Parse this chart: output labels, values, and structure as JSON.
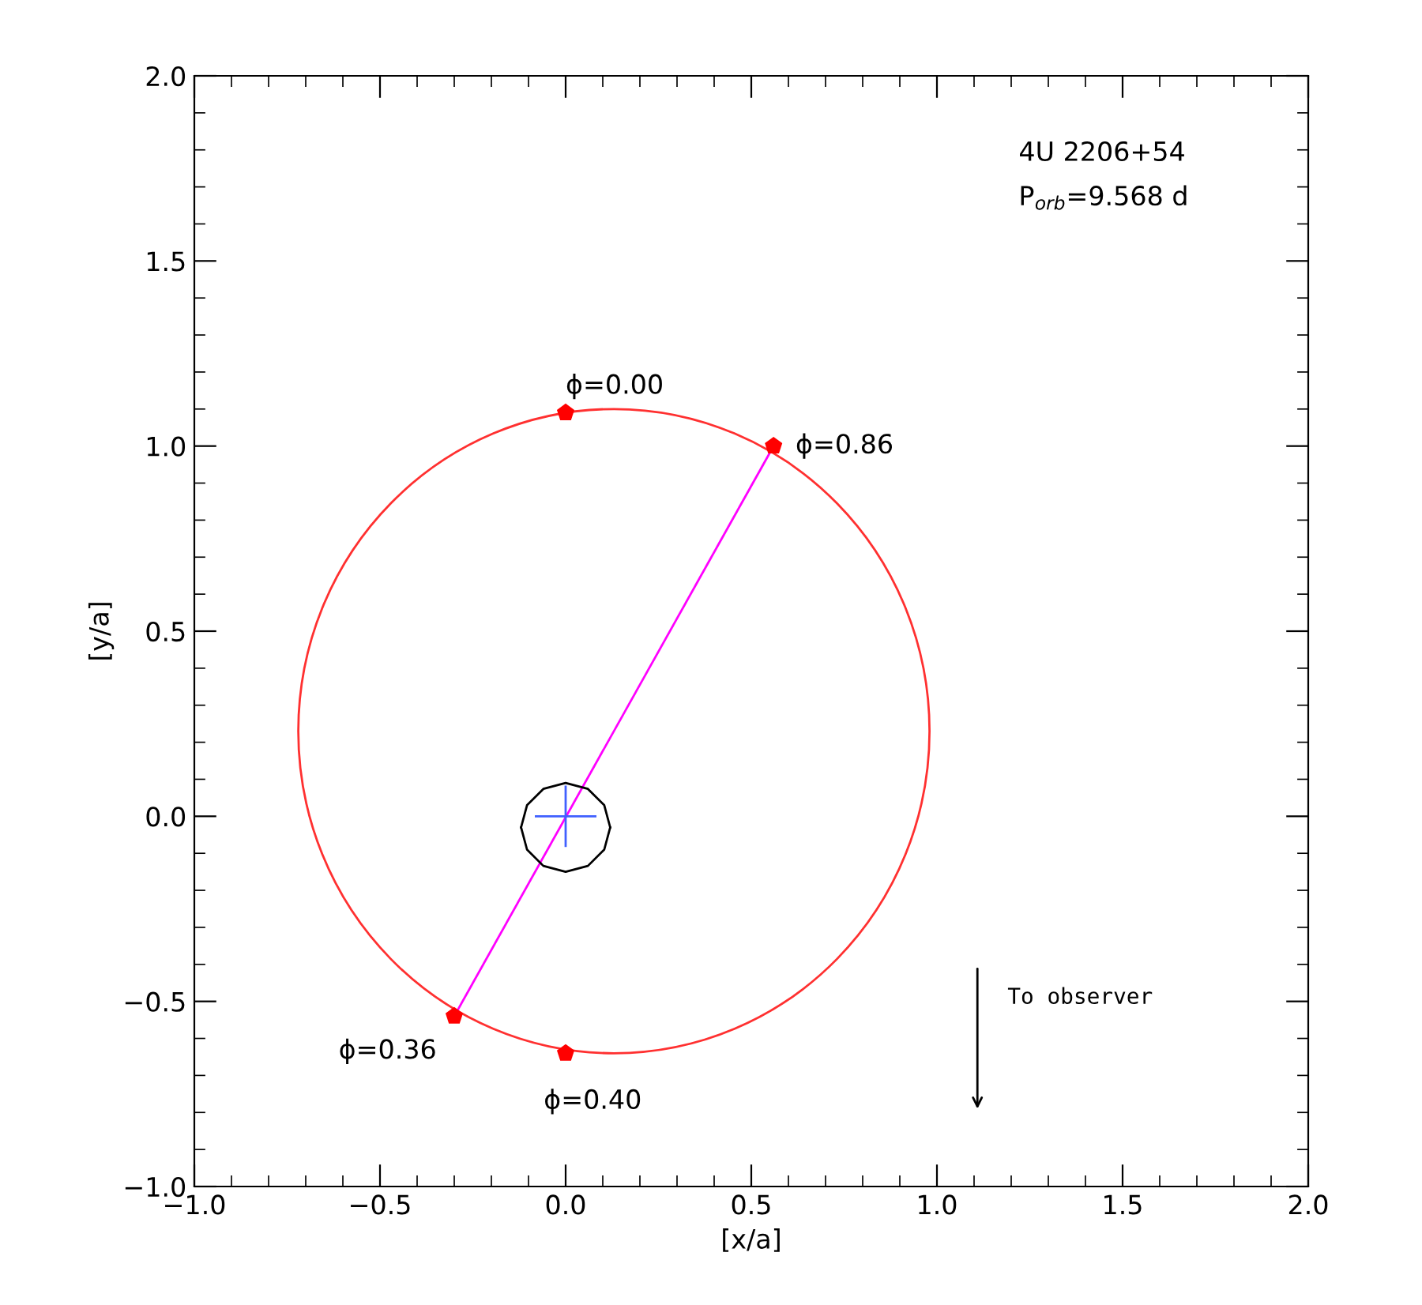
{
  "chart_data": {
    "type": "line",
    "xlabel": "[x/a]",
    "ylabel": "[y/a]",
    "xlim": [
      -1.0,
      2.0
    ],
    "ylim": [
      -1.0,
      2.0
    ],
    "xticks": [
      {
        "value": -1.0,
        "label": "−1.0"
      },
      {
        "value": -0.5,
        "label": "−0.5"
      },
      {
        "value": 0.0,
        "label": "0.0"
      },
      {
        "value": 0.5,
        "label": "0.5"
      },
      {
        "value": 1.0,
        "label": "1.0"
      },
      {
        "value": 1.5,
        "label": "1.5"
      },
      {
        "value": 2.0,
        "label": "2.0"
      }
    ],
    "yticks": [
      {
        "value": -1.0,
        "label": "−1.0"
      },
      {
        "value": -0.5,
        "label": "−0.5"
      },
      {
        "value": 0.0,
        "label": "0.0"
      },
      {
        "value": 0.5,
        "label": "0.5"
      },
      {
        "value": 1.0,
        "label": "1.0"
      },
      {
        "value": 1.5,
        "label": "1.5"
      },
      {
        "value": 2.0,
        "label": "2.0"
      }
    ],
    "grid": false,
    "legend": false,
    "series": [
      {
        "type": "line",
        "color": "#ff00ff",
        "marker": "none",
        "x": [
          -0.3,
          0.56
        ],
        "values": [
          -0.54,
          1.0
        ]
      },
      {
        "type": "line",
        "color": "#000000",
        "marker": "none",
        "x": [
          -0.12,
          -0.104,
          -0.06,
          0.0,
          0.06,
          0.104,
          0.12
        ],
        "values": [
          -0.03,
          0.03,
          0.074,
          0.09,
          0.074,
          0.03,
          -0.03
        ]
      },
      {
        "type": "line",
        "color": "#000000",
        "marker": "none",
        "x": [
          -0.12,
          -0.104,
          -0.06,
          0.0,
          0.06,
          0.104,
          0.12
        ],
        "values": [
          -0.03,
          -0.09,
          -0.134,
          -0.15,
          -0.134,
          -0.09,
          -0.03
        ]
      },
      {
        "type": "line",
        "color": "#4060ff",
        "marker": "none",
        "x": [
          -0.08,
          0.08
        ],
        "values": [
          0.0,
          0.0
        ]
      },
      {
        "type": "line",
        "color": "#4060ff",
        "marker": "none",
        "x": [
          0.0,
          0.0
        ],
        "values": [
          -0.08,
          0.08
        ]
      },
      {
        "type": "scatter",
        "color": "#ff0000",
        "x": [
          0.0,
          0.56,
          -0.3,
          0.0
        ],
        "values": [
          1.09,
          1.0,
          -0.54,
          -0.64
        ]
      }
    ],
    "annotations": [
      {
        "text": "ϕ=0.00",
        "x": 0.0,
        "y": 1.09
      },
      {
        "text": "ϕ=0.86",
        "x": 0.56,
        "y": 1.0
      },
      {
        "text": "ϕ=0.36",
        "x": -0.3,
        "y": -0.54
      },
      {
        "text": "ϕ=0.40",
        "x": 0.0,
        "y": -0.64
      },
      "4U 2206+54",
      "P$_{orb}$=9.568 d",
      "To observer"
    ]
  }
}
